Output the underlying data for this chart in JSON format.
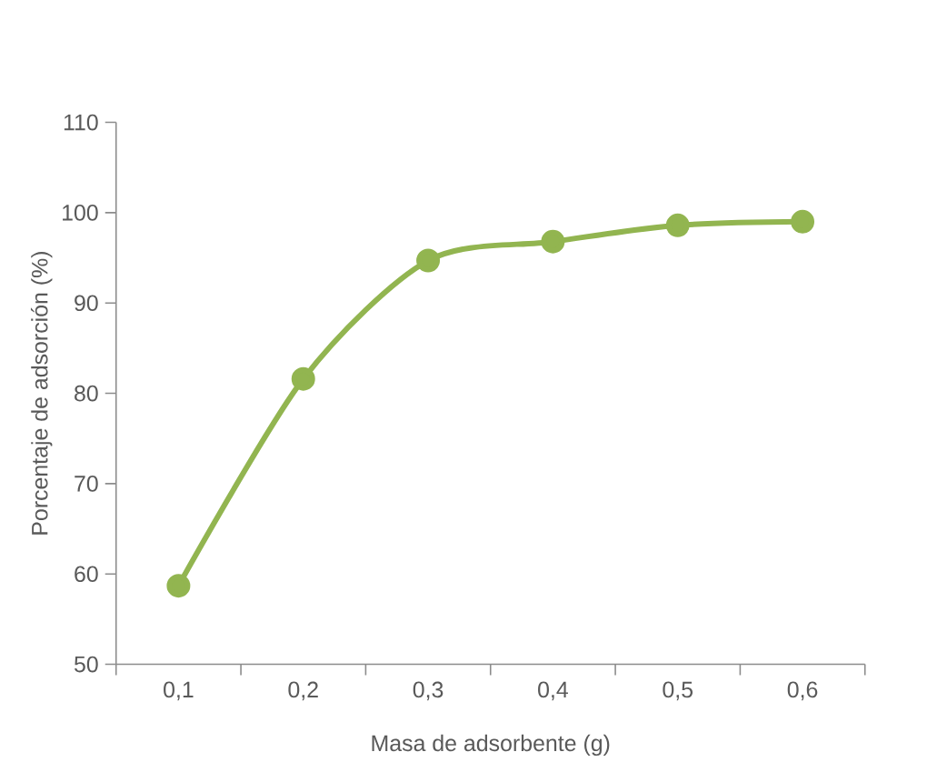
{
  "chart_data": {
    "type": "line",
    "xlabel": "Masa de adsorbente (g)",
    "ylabel": "Porcentaje de adsorción (%)",
    "categories": [
      "0,1",
      "0,2",
      "0,3",
      "0,4",
      "0,5",
      "0,6"
    ],
    "values": [
      58.7,
      81.6,
      94.7,
      96.8,
      98.6,
      99.0
    ],
    "color": "#92b550",
    "ylim": [
      50,
      110
    ],
    "yticks": [
      50,
      60,
      70,
      80,
      90,
      100,
      110
    ],
    "marker": "circle",
    "line_style": "solid"
  }
}
